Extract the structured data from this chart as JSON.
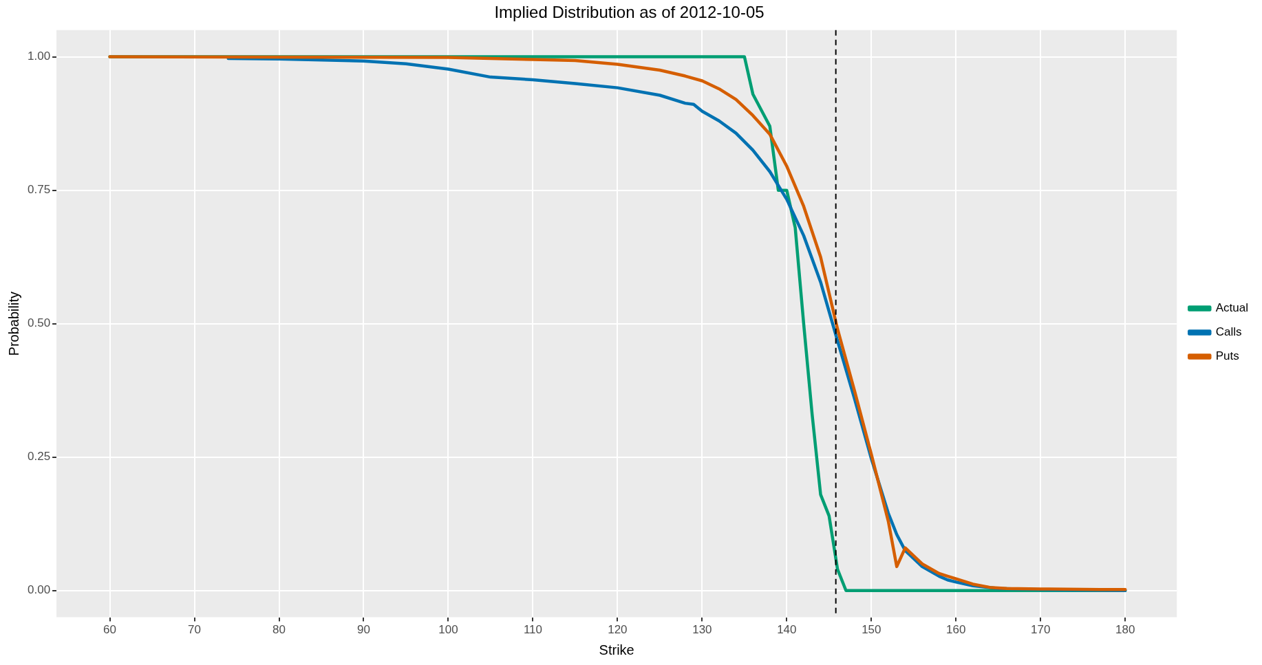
{
  "chart_data": {
    "type": "line",
    "title": "Implied Distribution as of 2012-10-05",
    "xlabel": "Strike",
    "ylabel": "Probability",
    "xlim": [
      53.7,
      186.1
    ],
    "xticks": [
      60,
      70,
      80,
      90,
      100,
      110,
      120,
      130,
      140,
      150,
      160,
      170,
      180
    ],
    "ylim": [
      -0.05,
      1.05
    ],
    "yticks": [
      {
        "value": 0,
        "label": "0.00"
      },
      {
        "value": 0.25,
        "label": "0.25"
      },
      {
        "value": 0.5,
        "label": "0.50"
      },
      {
        "value": 0.75,
        "label": "0.75"
      },
      {
        "value": 1,
        "label": "1.00"
      }
    ],
    "grid": true,
    "legend": "right",
    "marker": "none",
    "line_style": "solid",
    "ref_lines": [
      {
        "axis": "x",
        "value": 145.8,
        "label": null,
        "color": "#000000",
        "line_style": "dashed"
      }
    ],
    "series": [
      {
        "name": "Actual",
        "color": "#009e73",
        "x": [
          60,
          135,
          136,
          138,
          139,
          140,
          141,
          142,
          143,
          144,
          145,
          146,
          147,
          180
        ],
        "values": [
          1,
          1,
          0.93,
          0.87,
          0.75,
          0.75,
          0.68,
          0.5,
          0.33,
          0.18,
          0.14,
          0.04,
          0,
          0
        ]
      },
      {
        "name": "Calls",
        "color": "#0072b2",
        "x": [
          74,
          80,
          90,
          95,
          100,
          105,
          110,
          115,
          120,
          125,
          128,
          129,
          130,
          132,
          134,
          136,
          138,
          140,
          142,
          144,
          146,
          148,
          150,
          152,
          153,
          154,
          156,
          158,
          159,
          160,
          162,
          165,
          170,
          180
        ],
        "values": [
          0.997,
          0.996,
          0.992,
          0.987,
          0.977,
          0.962,
          0.957,
          0.95,
          0.942,
          0.928,
          0.913,
          0.911,
          0.898,
          0.88,
          0.857,
          0.825,
          0.785,
          0.733,
          0.665,
          0.578,
          0.468,
          0.36,
          0.247,
          0.145,
          0.105,
          0.075,
          0.045,
          0.027,
          0.02,
          0.016,
          0.009,
          0.004,
          0.002,
          0
        ]
      },
      {
        "name": "Puts",
        "color": "#d55e00",
        "x": [
          60,
          100,
          110,
          115,
          120,
          125,
          128,
          130,
          132,
          134,
          136,
          138,
          140,
          142,
          144,
          146,
          148,
          150,
          152,
          153,
          154,
          156,
          158,
          159,
          160,
          162,
          164,
          166,
          170,
          177,
          180
        ],
        "values": [
          1,
          0.999,
          0.995,
          0.993,
          0.986,
          0.975,
          0.964,
          0.955,
          0.94,
          0.92,
          0.89,
          0.855,
          0.795,
          0.72,
          0.625,
          0.49,
          0.375,
          0.255,
          0.13,
          0.045,
          0.08,
          0.05,
          0.032,
          0.027,
          0.022,
          0.012,
          0.006,
          0.004,
          0.003,
          0.002,
          0.002
        ]
      }
    ]
  }
}
